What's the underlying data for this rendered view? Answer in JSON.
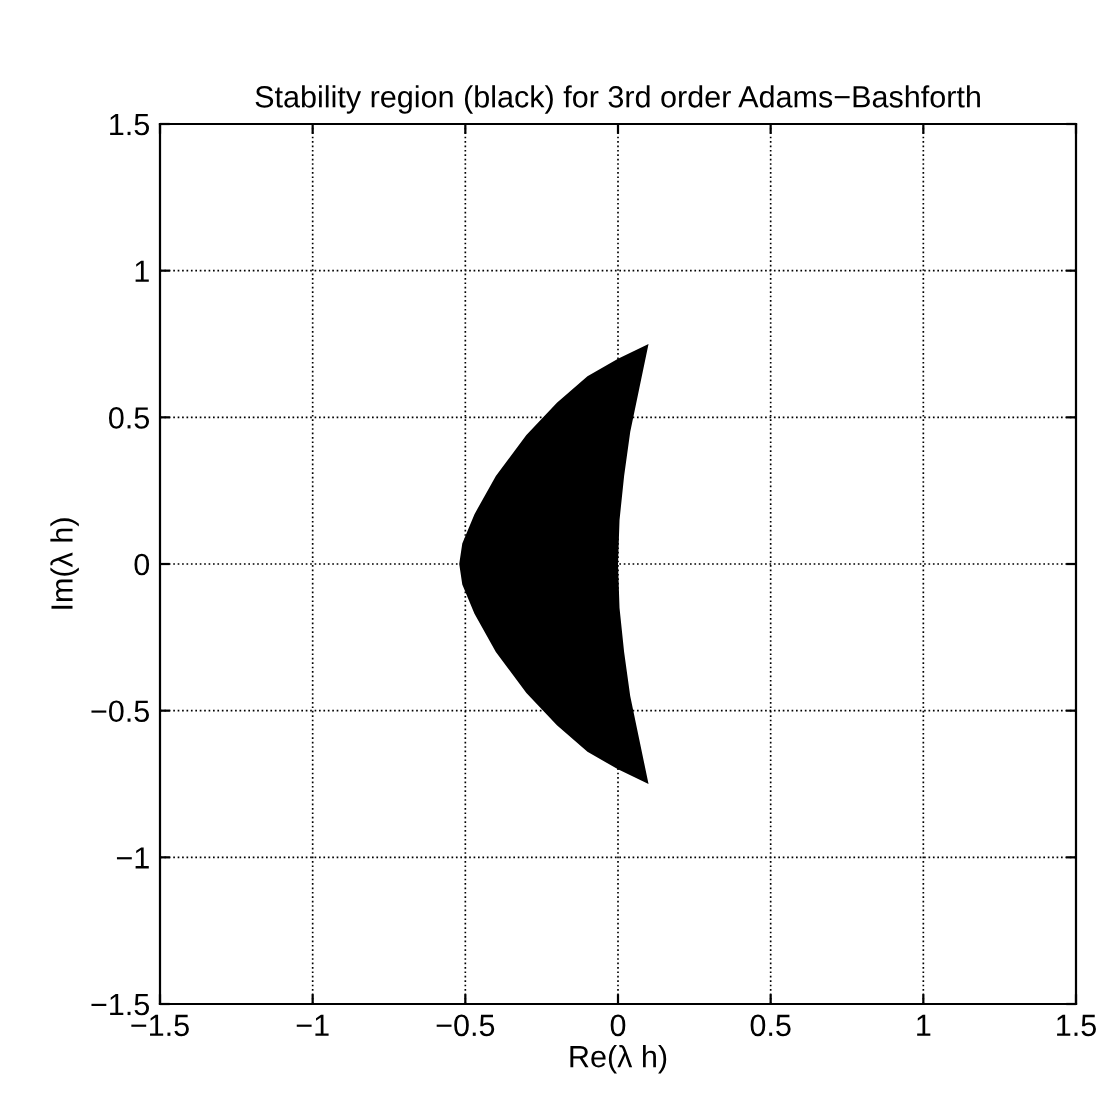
{
  "chart_data": {
    "type": "area",
    "title": "Stability region (black) for 3rd order Adams−Bashforth",
    "xlabel": "Re(λ h)",
    "ylabel": "Im(λ h)",
    "series": [
      {
        "color": "#000000",
        "x": [
          0.1,
          0.0,
          -0.1,
          -0.2,
          -0.3,
          -0.4,
          -0.47,
          -0.51,
          -0.52,
          -0.51,
          -0.47,
          -0.4,
          -0.3,
          -0.2,
          -0.1,
          0.0,
          0.1,
          0.07,
          0.04,
          0.02,
          0.005,
          0,
          0.005,
          0.02,
          0.04,
          0.07
        ],
        "values": [
          0.75,
          0.7,
          0.64,
          0.55,
          0.44,
          0.3,
          0.17,
          0.07,
          0,
          -0.07,
          -0.17,
          -0.3,
          -0.44,
          -0.55,
          -0.64,
          -0.7,
          -0.75,
          -0.6,
          -0.45,
          -0.3,
          -0.15,
          0,
          0.15,
          0.3,
          0.45,
          0.6
        ]
      }
    ],
    "xlim": [
      -1.5,
      1.5
    ],
    "ylim": [
      -1.5,
      1.5
    ],
    "xticks": [
      {
        "value": -1.5,
        "label": "−1.5"
      },
      {
        "value": -1,
        "label": "−1"
      },
      {
        "value": -0.5,
        "label": "−0.5"
      },
      0,
      0.5,
      1,
      1.5
    ],
    "yticks": [
      {
        "value": -1.5,
        "label": "−1.5"
      },
      {
        "value": -1,
        "label": "−1"
      },
      {
        "value": -0.5,
        "label": "−0.5"
      },
      0,
      0.5,
      1,
      1.5
    ],
    "grid": true,
    "line_style": "dotted"
  }
}
